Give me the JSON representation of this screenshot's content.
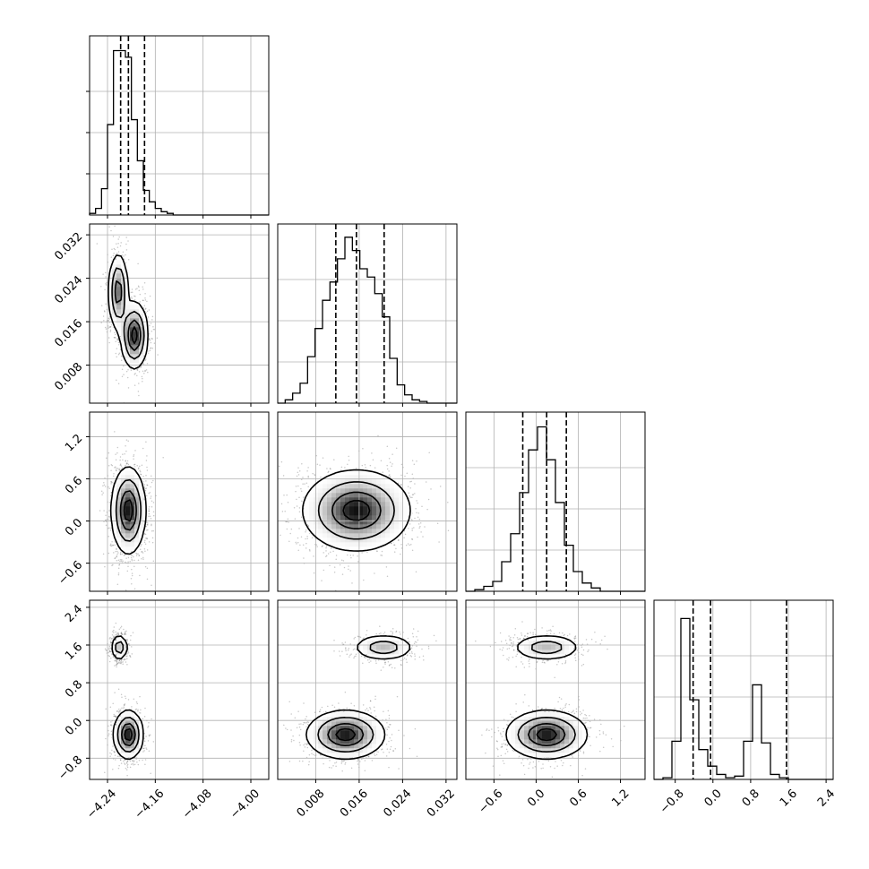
{
  "chart_data": {
    "type": "corner",
    "grid": true,
    "parameters": [
      {
        "index": 0,
        "range": [
          -4.27,
          -3.97
        ],
        "ticks": [
          "-4.24",
          "-4.16",
          "-4.08",
          "-4.00"
        ],
        "tick_values": [
          -4.24,
          -4.16,
          -4.08,
          -4.0
        ],
        "quantiles": [
          -4.218,
          -4.205,
          -4.178
        ],
        "histogram": {
          "bin_width": 0.01,
          "counts": [
            0.01,
            0.04,
            0.16,
            0.55,
            1.0,
            1.0,
            0.96,
            0.58,
            0.33,
            0.15,
            0.08,
            0.04,
            0.02,
            0.01,
            0,
            0,
            0,
            0,
            0,
            0,
            0,
            0,
            0,
            0,
            0,
            0,
            0,
            0,
            0,
            0
          ]
        },
        "histogram_ylim": 1.09
      },
      {
        "index": 1,
        "range": [
          0.001,
          0.034
        ],
        "ticks": [
          "0.008",
          "0.016",
          "0.024",
          "0.032"
        ],
        "tick_values": [
          0.008,
          0.016,
          0.024,
          0.032
        ],
        "quantiles": [
          0.0117,
          0.0155,
          0.0206
        ],
        "histogram": {
          "bin_width": 0.001375,
          "counts": [
            0.0,
            0.02,
            0.06,
            0.12,
            0.28,
            0.45,
            0.62,
            0.73,
            0.87,
            1.0,
            0.92,
            0.81,
            0.76,
            0.66,
            0.52,
            0.27,
            0.11,
            0.05,
            0.02,
            0.01,
            0.0,
            0.0,
            0.0,
            0.0
          ]
        },
        "histogram_ylim": 1.08
      },
      {
        "index": 2,
        "range": [
          -1.0,
          1.55
        ],
        "ticks": [
          "-0.6",
          "0.0",
          "0.6",
          "1.2"
        ],
        "tick_values": [
          -0.6,
          0.0,
          0.6,
          1.2
        ],
        "quantiles": [
          -0.19,
          0.15,
          0.43
        ],
        "histogram": {
          "bin_width": 0.1275,
          "counts": [
            0.0,
            0.01,
            0.03,
            0.06,
            0.18,
            0.35,
            0.6,
            0.86,
            1.0,
            0.8,
            0.54,
            0.28,
            0.12,
            0.05,
            0.02,
            0.0,
            0.0,
            0.0,
            0.0,
            0.0
          ]
        },
        "histogram_ylim": 1.09
      },
      {
        "index": 3,
        "range": [
          -1.25,
          2.55
        ],
        "ticks": [
          "-0.8",
          "0.0",
          "0.8",
          "1.6",
          "2.4"
        ],
        "tick_values": [
          -0.8,
          0.0,
          0.8,
          1.6,
          2.4
        ],
        "quantiles": [
          -0.42,
          -0.05,
          1.56
        ],
        "histogram": {
          "bin_width": 0.19,
          "counts": [
            0.0,
            0.01,
            0.23,
            0.97,
            0.48,
            0.18,
            0.08,
            0.03,
            0.01,
            0.02,
            0.23,
            0.57,
            0.22,
            0.03,
            0.01,
            0.0,
            0.0,
            0.0,
            0.0,
            0.0
          ]
        },
        "histogram_ylim": 1.08
      }
    ],
    "panels_2d": [
      {
        "x_param": 0,
        "y_param": 1,
        "modes": [
          {
            "center": [
              -4.222,
              0.0215
            ],
            "sd": [
              0.008,
              0.0035
            ],
            "weight": 0.45
          },
          {
            "center": [
              -4.195,
              0.0135
            ],
            "sd": [
              0.011,
              0.003
            ],
            "weight": 0.55
          }
        ]
      },
      {
        "x_param": 0,
        "y_param": 2,
        "modes": [
          {
            "center": [
              -4.205,
              0.15
            ],
            "sd": [
              0.014,
              0.3
            ],
            "weight": 1.0
          }
        ]
      },
      {
        "x_param": 1,
        "y_param": 2,
        "modes": [
          {
            "center": [
              0.0155,
              0.15
            ],
            "sd": [
              0.0048,
              0.28
            ],
            "weight": 1.0
          }
        ]
      },
      {
        "x_param": 0,
        "y_param": 3,
        "modes": [
          {
            "center": [
              -4.22,
              1.55
            ],
            "sd": [
              0.007,
              0.14
            ],
            "weight": 0.35
          },
          {
            "center": [
              -4.205,
              -0.3
            ],
            "sd": [
              0.012,
              0.25
            ],
            "weight": 0.65
          }
        ]
      },
      {
        "x_param": 1,
        "y_param": 3,
        "modes": [
          {
            "center": [
              0.0205,
              1.55
            ],
            "sd": [
              0.0028,
              0.14
            ],
            "weight": 0.35
          },
          {
            "center": [
              0.0135,
              -0.3
            ],
            "sd": [
              0.0035,
              0.25
            ],
            "weight": 0.65
          }
        ]
      },
      {
        "x_param": 2,
        "y_param": 3,
        "modes": [
          {
            "center": [
              0.15,
              1.55
            ],
            "sd": [
              0.24,
              0.14
            ],
            "weight": 0.35
          },
          {
            "center": [
              0.15,
              -0.3
            ],
            "sd": [
              0.28,
              0.25
            ],
            "weight": 0.65
          }
        ]
      }
    ]
  }
}
